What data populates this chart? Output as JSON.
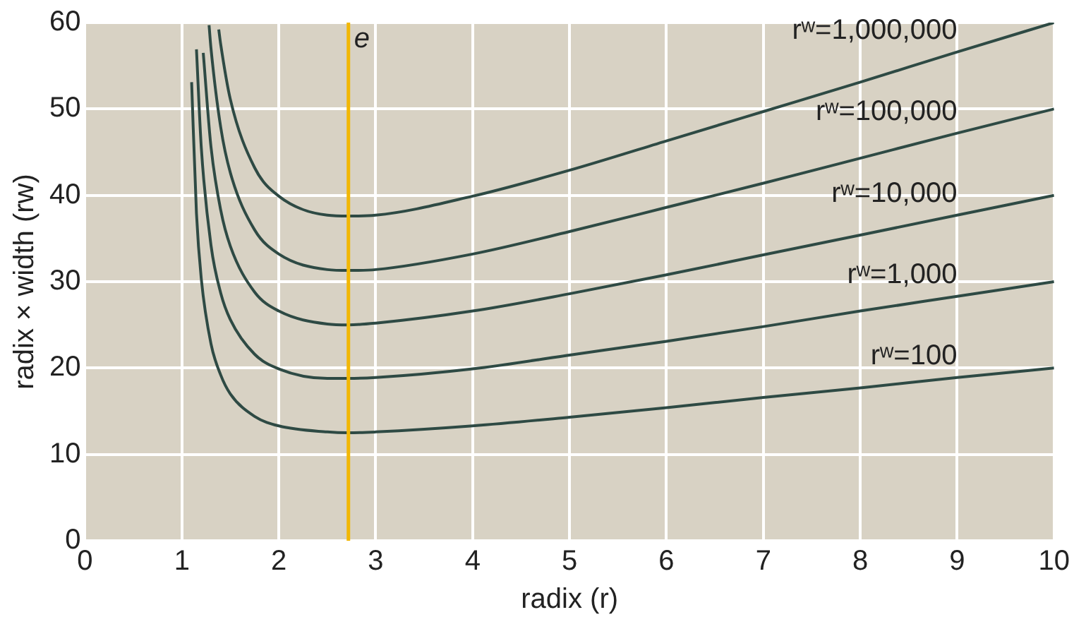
{
  "chart_data": {
    "type": "line",
    "xlabel": "radix (r)",
    "ylabel": "radix × width (rw)",
    "xlim": [
      0,
      10
    ],
    "xticks": [
      0,
      1,
      2,
      3,
      4,
      5,
      6,
      7,
      8,
      9,
      10
    ],
    "ylim": [
      0,
      60
    ],
    "yticks": [
      0,
      10,
      20,
      30,
      40,
      50,
      60
    ],
    "grid": true,
    "legend": false,
    "marker": "none",
    "line_style": "solid",
    "series": [
      {
        "name": "rʷ=100",
        "color": "#2e4a44",
        "x": [
          1.1,
          1.15,
          1.2,
          1.3,
          1.4,
          1.5,
          1.75,
          2,
          2.5,
          2.718,
          3,
          4,
          5,
          6,
          7,
          8,
          9,
          10
        ],
        "values": [
          53.1,
          37.9,
          30.3,
          22.8,
          19.2,
          17.0,
          14.4,
          13.3,
          12.6,
          12.5,
          12.6,
          13.3,
          14.3,
          15.4,
          16.6,
          17.7,
          18.9,
          20.0
        ]
      },
      {
        "name": "rʷ=1,000",
        "color": "#2e4a44",
        "x": [
          1.15,
          1.2,
          1.3,
          1.4,
          1.5,
          1.75,
          2,
          2.5,
          2.718,
          3,
          4,
          5,
          6,
          7,
          8,
          9,
          10
        ],
        "values": [
          56.9,
          45.5,
          34.2,
          28.7,
          25.6,
          21.6,
          19.9,
          18.8,
          18.8,
          18.9,
          19.9,
          21.5,
          23.1,
          24.8,
          26.6,
          28.3,
          30.0
        ]
      },
      {
        "name": "rʷ=10,000",
        "color": "#2e4a44",
        "x": [
          1.22,
          1.3,
          1.4,
          1.5,
          1.75,
          2,
          2.5,
          2.718,
          3,
          4,
          5,
          6,
          7,
          8,
          9,
          10
        ],
        "values": [
          56.5,
          45.6,
          38.3,
          34.1,
          28.8,
          26.6,
          25.1,
          25.0,
          25.2,
          26.6,
          28.6,
          30.8,
          33.1,
          35.4,
          37.7,
          40.0
        ]
      },
      {
        "name": "rʷ=100,000",
        "color": "#2e4a44",
        "x": [
          1.28,
          1.3,
          1.4,
          1.5,
          1.75,
          2,
          2.5,
          2.718,
          3,
          4,
          5,
          6,
          7,
          8,
          9,
          10
        ],
        "values": [
          59.7,
          57.0,
          47.9,
          42.6,
          36.0,
          33.2,
          31.4,
          31.3,
          31.4,
          33.2,
          35.8,
          38.6,
          41.4,
          44.3,
          47.2,
          50.0
        ]
      },
      {
        "name": "rʷ=1,000,000",
        "color": "#2e4a44",
        "x": [
          1.38,
          1.4,
          1.5,
          1.75,
          2,
          2.5,
          2.718,
          3,
          4,
          5,
          6,
          7,
          8,
          9,
          10
        ],
        "values": [
          59.2,
          57.5,
          51.1,
          43.2,
          39.9,
          37.7,
          37.6,
          37.7,
          39.9,
          42.9,
          46.3,
          49.7,
          53.1,
          56.6,
          60.0
        ]
      }
    ],
    "ref_lines": [
      {
        "axis": "x",
        "value": 2.718,
        "label": "e",
        "color": "#f2b705"
      }
    ]
  }
}
